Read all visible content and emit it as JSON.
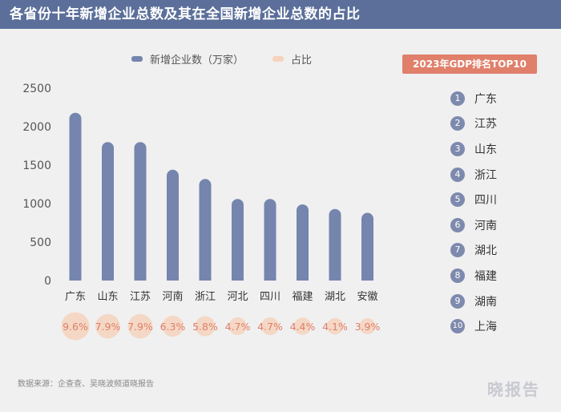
{
  "title": "各省份十年新增企业总数及其在全国新增企业总数的占比",
  "legend": {
    "series1": "新增企业数（万家）",
    "series2": "占比",
    "series1_color": "#7585ad",
    "series2_color": "#f5d3bd"
  },
  "chart_data": {
    "type": "bar",
    "categories": [
      "广东",
      "山东",
      "江苏",
      "河南",
      "浙江",
      "河北",
      "四川",
      "福建",
      "湖北",
      "安徽"
    ],
    "series": [
      {
        "name": "新增企业数（万家）",
        "values": [
          2180,
          1800,
          1800,
          1440,
          1320,
          1060,
          1060,
          990,
          930,
          880
        ]
      },
      {
        "name": "占比",
        "values": [
          "9.6%",
          "7.9%",
          "7.9%",
          "6.3%",
          "5.8%",
          "4.7%",
          "4.7%",
          "4.4%",
          "4.1%",
          "3.9%"
        ],
        "bubble": [
          9.6,
          7.9,
          7.9,
          6.3,
          5.8,
          4.7,
          4.7,
          4.4,
          4.1,
          3.9
        ]
      }
    ],
    "ylim": [
      0,
      2500
    ],
    "yticks": [
      0,
      500,
      1000,
      1500,
      2000,
      2500
    ],
    "grid": false,
    "legend_position": "top"
  },
  "rank_panel": {
    "title": "2023年GDP排名TOP10",
    "items": [
      {
        "num": "1",
        "name": "广东"
      },
      {
        "num": "2",
        "name": "江苏"
      },
      {
        "num": "3",
        "name": "山东"
      },
      {
        "num": "4",
        "name": "浙江"
      },
      {
        "num": "5",
        "name": "四川"
      },
      {
        "num": "6",
        "name": "河南"
      },
      {
        "num": "7",
        "name": "湖北"
      },
      {
        "num": "8",
        "name": "福建"
      },
      {
        "num": "9",
        "name": "湖南"
      },
      {
        "num": "10",
        "name": "上海"
      }
    ]
  },
  "source": "数据来源：企查查、吴晓波频道晓报告",
  "brand": "晓报告"
}
